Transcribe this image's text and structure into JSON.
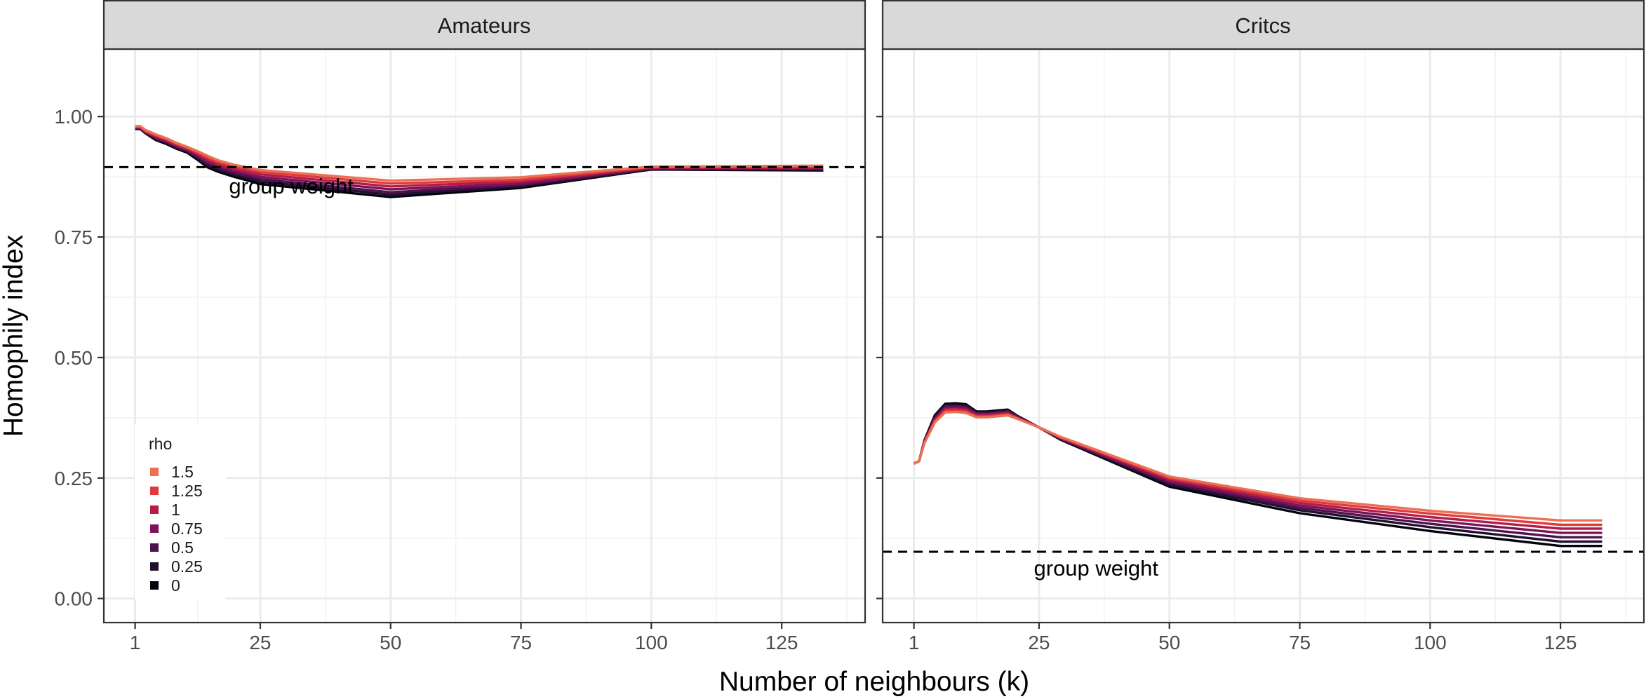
{
  "chart_data": {
    "type": "line",
    "ylabel": "Homophily index",
    "xlabel": "Number of neighbours (k)",
    "xlim": [
      -5,
      141
    ],
    "ylim": [
      -0.05,
      1.14
    ],
    "x_ticks": [
      1,
      25,
      50,
      75,
      100,
      125
    ],
    "x_tick_labels": [
      "1",
      "25",
      "50",
      "75",
      "100",
      "125"
    ],
    "y_ticks": [
      0,
      0.25,
      0.5,
      0.75,
      1
    ],
    "y_tick_labels": [
      "0.00",
      "0.25",
      "0.50",
      "0.75",
      "1.00"
    ],
    "grid": true,
    "legend": {
      "title": "rho",
      "placement": "bottom-left inside first panel",
      "entries": [
        "1.5",
        "1.25",
        "1",
        "0.75",
        "0.5",
        "0.25",
        "0"
      ]
    },
    "colors": {
      "1.5": "#ec7154",
      "1.25": "#de3a3f",
      "1": "#b31d47",
      "0.75": "#7e1458",
      "0.5": "#4e1150",
      "0.25": "#22102f",
      "0": "#03030f",
      "strip_fill": "#d9d9d9",
      "grid": "#ebebeb"
    },
    "panels": [
      {
        "strip": "Amateurs",
        "group_weight": 0.895,
        "annotation": "group weight",
        "annotation_x": 19,
        "annotation_y": 0.855,
        "x": [
          1,
          2,
          3,
          5,
          7,
          9,
          11,
          13,
          15,
          17,
          20,
          25,
          50,
          75,
          100,
          133
        ],
        "series": [
          {
            "name": "1.5",
            "values": [
              0.98,
              0.98,
              0.972,
              0.963,
              0.955,
              0.945,
              0.937,
              0.928,
              0.918,
              0.909,
              0.9,
              0.889,
              0.867,
              0.874,
              0.896,
              0.898
            ]
          },
          {
            "name": "1.25",
            "values": [
              0.979,
              0.979,
              0.97,
              0.961,
              0.953,
              0.943,
              0.935,
              0.925,
              0.914,
              0.905,
              0.896,
              0.885,
              0.861,
              0.869,
              0.895,
              0.896
            ]
          },
          {
            "name": "1",
            "values": [
              0.978,
              0.978,
              0.969,
              0.959,
              0.951,
              0.941,
              0.933,
              0.922,
              0.91,
              0.901,
              0.892,
              0.88,
              0.855,
              0.865,
              0.894,
              0.894
            ]
          },
          {
            "name": "0.75",
            "values": [
              0.977,
              0.977,
              0.968,
              0.957,
              0.949,
              0.939,
              0.931,
              0.919,
              0.906,
              0.897,
              0.887,
              0.875,
              0.849,
              0.861,
              0.893,
              0.893
            ]
          },
          {
            "name": "0.5",
            "values": [
              0.976,
              0.976,
              0.967,
              0.955,
              0.947,
              0.937,
              0.929,
              0.916,
              0.902,
              0.893,
              0.883,
              0.87,
              0.843,
              0.858,
              0.892,
              0.891
            ]
          },
          {
            "name": "0.25",
            "values": [
              0.975,
              0.975,
              0.966,
              0.953,
              0.945,
              0.935,
              0.927,
              0.913,
              0.898,
              0.889,
              0.879,
              0.865,
              0.838,
              0.855,
              0.891,
              0.89
            ]
          },
          {
            "name": "0",
            "values": [
              0.974,
              0.974,
              0.965,
              0.951,
              0.943,
              0.933,
              0.925,
              0.91,
              0.894,
              0.885,
              0.875,
              0.86,
              0.833,
              0.852,
              0.89,
              0.888
            ]
          }
        ]
      },
      {
        "strip": "Critcs",
        "group_weight": 0.097,
        "annotation": "group weight",
        "annotation_x": 24,
        "annotation_y": 0.062,
        "x": [
          1,
          2,
          3,
          5,
          7,
          9,
          11,
          13,
          15,
          17,
          19,
          21,
          25,
          29,
          50,
          75,
          100,
          125,
          133
        ],
        "series": [
          {
            "name": "1.5",
            "values": [
              0.28,
              0.285,
              0.322,
              0.365,
              0.386,
              0.387,
              0.385,
              0.376,
              0.376,
              0.378,
              0.38,
              0.372,
              0.355,
              0.336,
              0.253,
              0.208,
              0.182,
              0.162,
              0.162
            ]
          },
          {
            "name": "1.25",
            "values": [
              0.28,
              0.285,
              0.323,
              0.368,
              0.389,
              0.39,
              0.388,
              0.378,
              0.378,
              0.38,
              0.382,
              0.373,
              0.355,
              0.335,
              0.25,
              0.203,
              0.176,
              0.153,
              0.153
            ]
          },
          {
            "name": "1",
            "values": [
              0.28,
              0.285,
              0.324,
              0.37,
              0.392,
              0.393,
              0.391,
              0.38,
              0.38,
              0.382,
              0.384,
              0.374,
              0.355,
              0.334,
              0.247,
              0.198,
              0.169,
              0.145,
              0.145
            ]
          },
          {
            "name": "0.75",
            "values": [
              0.28,
              0.285,
              0.325,
              0.372,
              0.395,
              0.396,
              0.394,
              0.382,
              0.382,
              0.384,
              0.386,
              0.375,
              0.355,
              0.333,
              0.243,
              0.193,
              0.162,
              0.136,
              0.136
            ]
          },
          {
            "name": "0.5",
            "values": [
              0.28,
              0.285,
              0.326,
              0.374,
              0.398,
              0.399,
              0.397,
              0.384,
              0.384,
              0.386,
              0.388,
              0.376,
              0.355,
              0.332,
              0.24,
              0.188,
              0.155,
              0.127,
              0.127
            ]
          },
          {
            "name": "0.25",
            "values": [
              0.28,
              0.285,
              0.327,
              0.377,
              0.401,
              0.402,
              0.4,
              0.386,
              0.386,
              0.388,
              0.39,
              0.377,
              0.355,
              0.331,
              0.236,
              0.183,
              0.148,
              0.118,
              0.118
            ]
          },
          {
            "name": "0",
            "values": [
              0.28,
              0.285,
              0.328,
              0.38,
              0.404,
              0.405,
              0.403,
              0.388,
              0.388,
              0.39,
              0.392,
              0.378,
              0.355,
              0.33,
              0.232,
              0.177,
              0.14,
              0.109,
              0.109
            ]
          }
        ]
      }
    ]
  }
}
